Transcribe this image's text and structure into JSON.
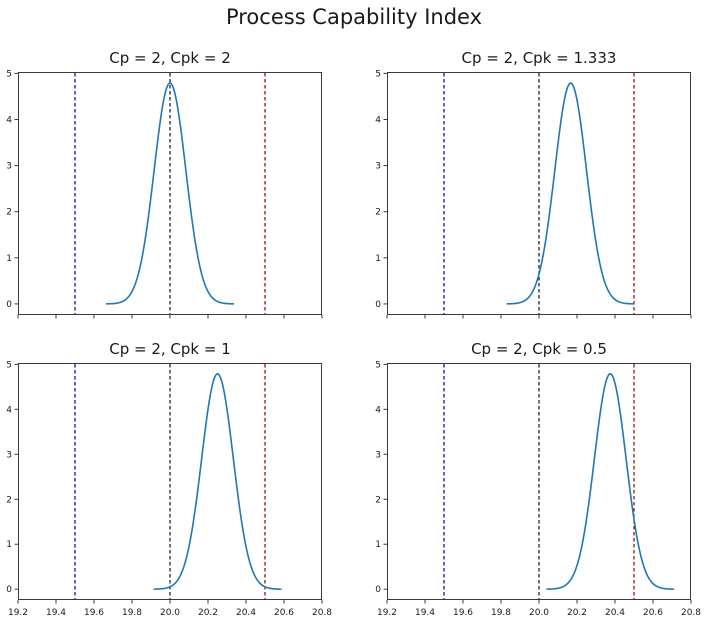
{
  "figure": {
    "title": "Process Capability Index"
  },
  "axis": {
    "xlim": [
      19.2,
      20.8
    ],
    "ylim": [
      -0.24,
      5.03
    ],
    "xticks": [
      19.2,
      19.4,
      19.6,
      19.8,
      20.0,
      20.2,
      20.4,
      20.6,
      20.8
    ],
    "xtick_labels": [
      "19.2",
      "19.4",
      "19.6",
      "19.8",
      "20.0",
      "20.2",
      "20.4",
      "20.6",
      "20.8"
    ],
    "yticks": [
      0,
      1,
      2,
      3,
      4,
      5
    ],
    "ytick_labels": [
      "0",
      "1",
      "2",
      "3",
      "4",
      "5"
    ],
    "grid": false,
    "legend": "none"
  },
  "colors": {
    "curve": "#1f77b4",
    "lsl_line": "#00008b",
    "center_line": "#111111",
    "usl_line": "#8b0000",
    "spine": "#3a3a3a",
    "text": "#1a1a1a",
    "background": "#ffffff"
  },
  "chart_data": [
    {
      "type": "line",
      "title": "Cp = 2, Cpk = 2",
      "cp": 2,
      "cpk": 2,
      "curve": "normal-pdf",
      "mean": 20.0,
      "sigma": 0.08333,
      "peak_height": 4.79,
      "lsl": 19.5,
      "target": 20.0,
      "usl": 20.5,
      "x_tick_labels_shown": false,
      "y_tick_labels_shown": true
    },
    {
      "type": "line",
      "title": "Cp = 2, Cpk = 1.333",
      "cp": 2,
      "cpk": 1.333,
      "curve": "normal-pdf",
      "mean": 20.1667,
      "sigma": 0.08333,
      "peak_height": 4.79,
      "lsl": 19.5,
      "target": 20.0,
      "usl": 20.5,
      "x_tick_labels_shown": false,
      "y_tick_labels_shown": true
    },
    {
      "type": "line",
      "title": "Cp = 2, Cpk = 1",
      "cp": 2,
      "cpk": 1,
      "curve": "normal-pdf",
      "mean": 20.25,
      "sigma": 0.08333,
      "peak_height": 4.79,
      "lsl": 19.5,
      "target": 20.0,
      "usl": 20.5,
      "x_tick_labels_shown": true,
      "y_tick_labels_shown": true
    },
    {
      "type": "line",
      "title": "Cp = 2, Cpk = 0.5",
      "cp": 2,
      "cpk": 0.5,
      "curve": "normal-pdf",
      "mean": 20.375,
      "sigma": 0.08333,
      "peak_height": 4.79,
      "lsl": 19.5,
      "target": 20.0,
      "usl": 20.5,
      "x_tick_labels_shown": true,
      "y_tick_labels_shown": true
    }
  ]
}
